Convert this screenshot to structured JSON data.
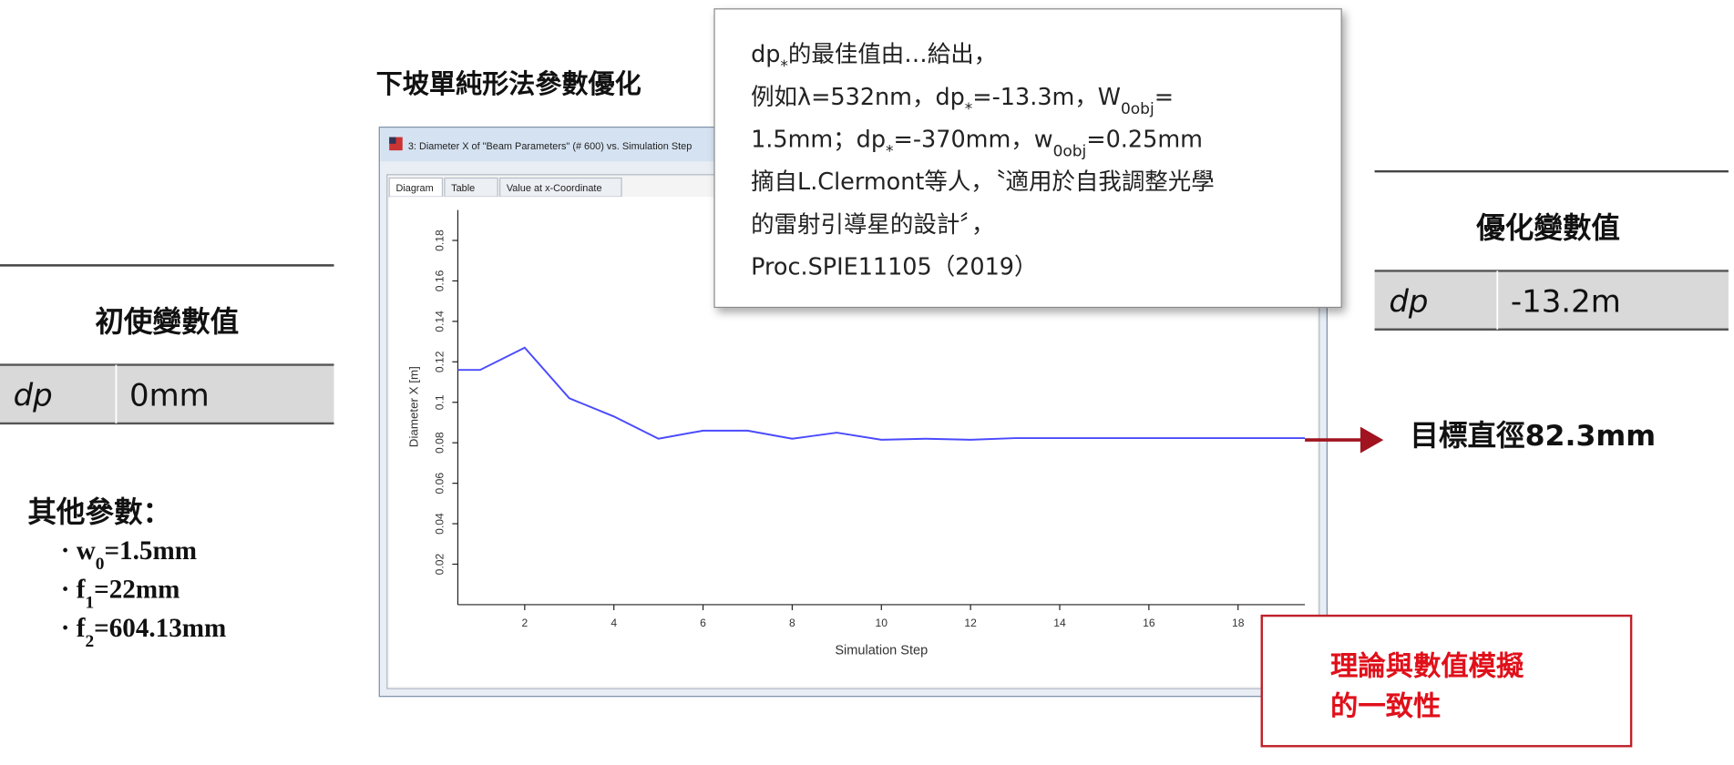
{
  "title": "下坡單純形法參數優化",
  "initial": {
    "heading": "初使變數值",
    "name": "dp",
    "value": "0mm"
  },
  "optimized": {
    "heading": "優化變數值",
    "name": "dp",
    "value": "-13.2m"
  },
  "other": {
    "heading": "其他參數：",
    "items": [
      [
        {
          "t": "· w"
        },
        {
          "sub": "0"
        },
        {
          "t": "=1.5mm"
        }
      ],
      [
        {
          "t": "· f"
        },
        {
          "sub": "1"
        },
        {
          "t": "=22mm"
        }
      ],
      [
        {
          "t": "· f"
        },
        {
          "sub": "2"
        },
        {
          "t": "=604.13mm"
        }
      ]
    ]
  },
  "target": "目標直徑82.3mm",
  "conclusion": [
    "理論與數值模擬",
    "的一致性"
  ],
  "callout": {
    "lines": [
      [
        {
          "t": "dp"
        },
        {
          "sub": "*"
        },
        {
          "t": "的最佳值由…給出，"
        }
      ],
      [
        {
          "t": "例如λ=532nm，dp"
        },
        {
          "sub": "*"
        },
        {
          "t": "=-13.3m，W"
        },
        {
          "sub": "0obj"
        },
        {
          "t": "="
        }
      ],
      [
        {
          "t": "1.5mm；dp"
        },
        {
          "sub": "*"
        },
        {
          "t": "=-370mm，w"
        },
        {
          "sub": "0obj"
        },
        {
          "t": "=0.25mm"
        }
      ],
      [
        {
          "t": "摘自L.Clermont等人，〝適用於自我調整光學"
        }
      ],
      [
        {
          "t": "的雷射引導星的設計〞，"
        }
      ],
      [
        {
          "t": "Proc.SPIE11105（2019）"
        }
      ]
    ]
  },
  "window": {
    "title": "3: Diameter X of \"Beam Parameters\" (# 600) vs. Simulation Step",
    "tabs": [
      "Diagram",
      "Table",
      "Value at x-Coordinate"
    ]
  },
  "chart_data": {
    "type": "line",
    "x_label": "Simulation Step",
    "y_label": "Diameter X [m]",
    "x": [
      0.5,
      1,
      2,
      3,
      4,
      5,
      6,
      7,
      8,
      9,
      10,
      11,
      12,
      13,
      14,
      15,
      16,
      17,
      18,
      19,
      19.5
    ],
    "values": [
      0.116,
      0.116,
      0.127,
      0.102,
      0.093,
      0.082,
      0.086,
      0.086,
      0.082,
      0.085,
      0.0815,
      0.082,
      0.0815,
      0.0823,
      0.0823,
      0.0823,
      0.0823,
      0.0823,
      0.0823,
      0.0823,
      0.0823
    ],
    "color": "#4a4aff",
    "xlim": [
      0.5,
      19.5
    ],
    "ylim": [
      0,
      0.195
    ],
    "xticks": [
      2,
      4,
      6,
      8,
      10,
      12,
      14,
      16,
      18
    ],
    "yticks": [
      0.02,
      0.04,
      0.06,
      0.08,
      0.1,
      0.12,
      0.14,
      0.16,
      0.18
    ]
  }
}
